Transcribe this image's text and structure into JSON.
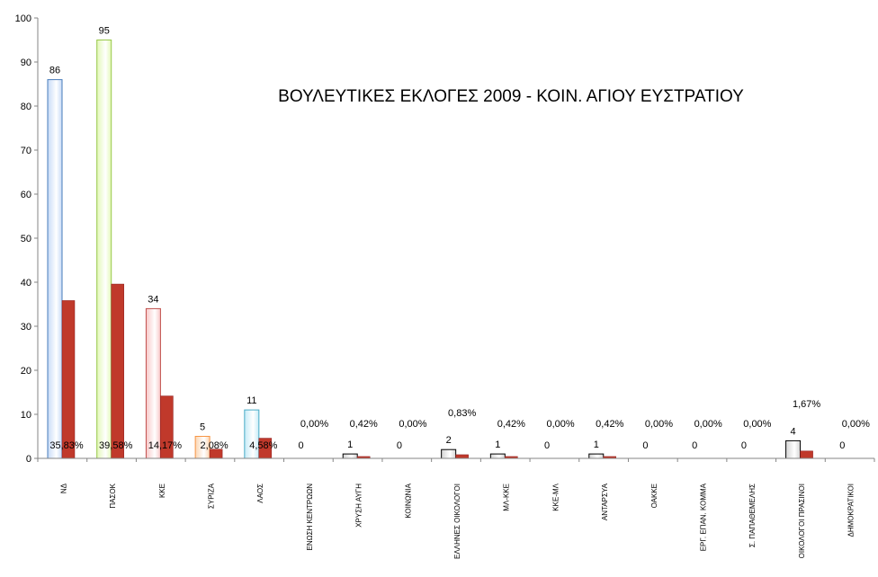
{
  "chart_data": {
    "type": "bar",
    "title": "ΒΟΥΛΕΥΤΙΚΕΣ ΕΚΛΟΓΕΣ 2009 - ΚΟΙΝ. ΑΓΙΟΥ ΕΥΣΤΡΑΤΙΟΥ",
    "xlabel": "",
    "ylabel": "",
    "ylim": [
      0,
      100
    ],
    "y_ticks": [
      "0",
      "10",
      "20",
      "30",
      "40",
      "50",
      "60",
      "70",
      "80",
      "90",
      "100"
    ],
    "grid": false,
    "legend": "none",
    "categories": [
      "ΝΔ",
      "ΠΑΣΟΚ",
      "ΚΚΕ",
      "ΣΥΡΙΖΑ",
      "ΛΑΟΣ",
      "ΕΝΩΣΗ ΚΕΝΤΡΩΩΝ",
      "ΧΡΥΣΗ ΑΥΓΗ",
      "ΚΟΙΝΩΝΙΑ",
      "ΕΛΛΗΝΕΣ ΟΙΚΟΛΟΓΟΙ",
      "ΜΛ-ΚΚΕ",
      "ΚΚΕ-ΜΛ",
      "ΑΝΤΑΡΣΥΑ",
      "ΟΑΚΚΕ",
      "ΕΡΓ. ΕΠΑΝ. ΚΟΜΜΑ",
      "Σ. ΠΑΠΑΘΕΜΕΛΗΣ",
      "ΟΙΚΟΛΟΓΟΙ ΠΡΑΣΙΝΟΙ",
      "ΔΗΜΟΚΡΑΤΙΚΟΙ"
    ],
    "series": [
      {
        "values": [
          86,
          95,
          34,
          5,
          11,
          0,
          1,
          0,
          2,
          1,
          0,
          1,
          0,
          0,
          0,
          4,
          0
        ],
        "labels": [
          "86",
          "95",
          "34",
          "5",
          "11",
          "0",
          "1",
          "0",
          "2",
          "1",
          "0",
          "1",
          "0",
          "0",
          "0",
          "4",
          "0"
        ]
      },
      {
        "values": [
          35.83,
          39.58,
          14.17,
          2.08,
          4.58,
          0,
          0.42,
          0,
          0.83,
          0.42,
          0,
          0.42,
          0,
          0,
          0,
          1.67,
          0
        ],
        "labels": [
          "35,83%",
          "39,58%",
          "14,17%",
          "2,08%",
          "4,58%",
          "0,00%",
          "0,42%",
          "0,00%",
          "0,83%",
          "0,42%",
          "0,00%",
          "0,42%",
          "0,00%",
          "0,00%",
          "0,00%",
          "1,67%",
          "0,00%"
        ]
      }
    ],
    "colors": {
      "votes_fill": [
        "#c6daf7",
        "#e2f8b6",
        "#f8c8c8",
        "#fbd6b4",
        "#c6ebf7",
        "#d4d4d4",
        "#d4d4d4",
        "#d4d4d4",
        "#d4d4d4",
        "#d4d4d4",
        "#d4d4d4",
        "#d4d4d4",
        "#d4d4d4",
        "#d4d4d4",
        "#d4d4d4",
        "#d4d4d4",
        "#d4d4d4"
      ],
      "votes_stroke": [
        "#4a7ebb",
        "#98c84a",
        "#c0504d",
        "#f79646",
        "#4bacc6",
        "#000000",
        "#000000",
        "#000000",
        "#000000",
        "#000000",
        "#000000",
        "#000000",
        "#000000",
        "#000000",
        "#000000",
        "#000000",
        "#000000"
      ],
      "percent_fill": "#c0392b",
      "percent_stroke": "#8b1a1a",
      "axis": "#868686"
    }
  }
}
